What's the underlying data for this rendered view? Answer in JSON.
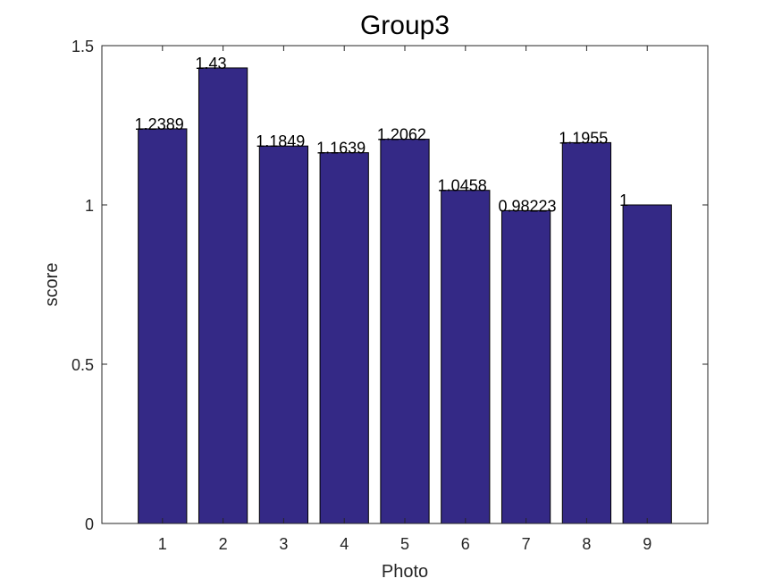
{
  "chart_data": {
    "type": "bar",
    "title": "Group3",
    "xlabel": "Photo",
    "ylabel": "score",
    "categories": [
      "1",
      "2",
      "3",
      "4",
      "5",
      "6",
      "7",
      "8",
      "9"
    ],
    "values": [
      1.2389,
      1.43,
      1.1849,
      1.1639,
      1.2062,
      1.0458,
      0.98223,
      1.1955,
      1
    ],
    "value_labels": [
      "1.2389",
      "1.43",
      "1.1849",
      "1.1639",
      "1.2062",
      "1.0458",
      "0.98223",
      "1.1955",
      "1"
    ],
    "ylim": [
      0,
      1.5
    ],
    "xlim": [
      0,
      10
    ],
    "yticks": [
      0,
      0.5,
      1,
      1.5
    ],
    "ytick_labels": [
      "0",
      "0.5",
      "1",
      "1.5"
    ],
    "grid": false,
    "legend": "none",
    "bar_color": "#342986",
    "bar_edge_color": "#000000",
    "axis_color": "#262626"
  }
}
